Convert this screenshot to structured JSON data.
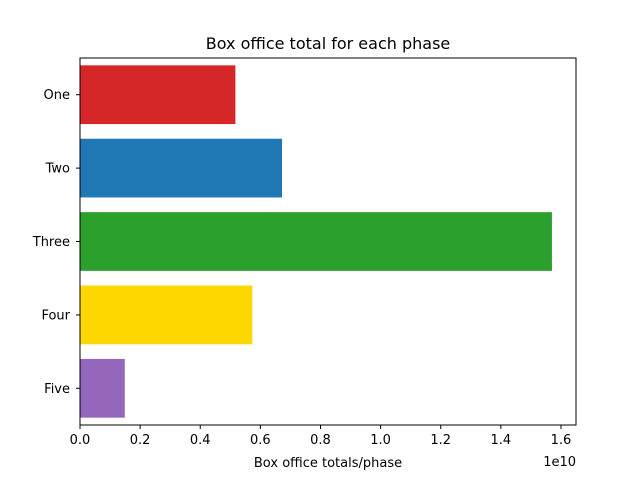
{
  "chart_data": {
    "type": "bar",
    "orientation": "horizontal",
    "title": "Box office total for each phase",
    "xlabel": "Box office totals/phase",
    "ylabel": "",
    "x_offset_label": "1e10",
    "x_scale": 10000000000,
    "xlim": [
      0,
      16500000000
    ],
    "x_tick_values": [
      0,
      2000000000,
      4000000000,
      6000000000,
      8000000000,
      10000000000,
      12000000000,
      14000000000,
      16000000000
    ],
    "x_tick_labels": [
      "0.0",
      "0.2",
      "0.4",
      "0.6",
      "0.8",
      "1.0",
      "1.2",
      "1.4",
      "1.6"
    ],
    "categories": [
      "One",
      "Two",
      "Three",
      "Four",
      "Five"
    ],
    "values": [
      5170000000,
      6720000000,
      15700000000,
      5730000000,
      1490000000
    ],
    "colors": [
      "#d62728",
      "#1f77b4",
      "#2ca02c",
      "#ffd700",
      "#9467bd"
    ],
    "grid": false,
    "legend": "none"
  }
}
